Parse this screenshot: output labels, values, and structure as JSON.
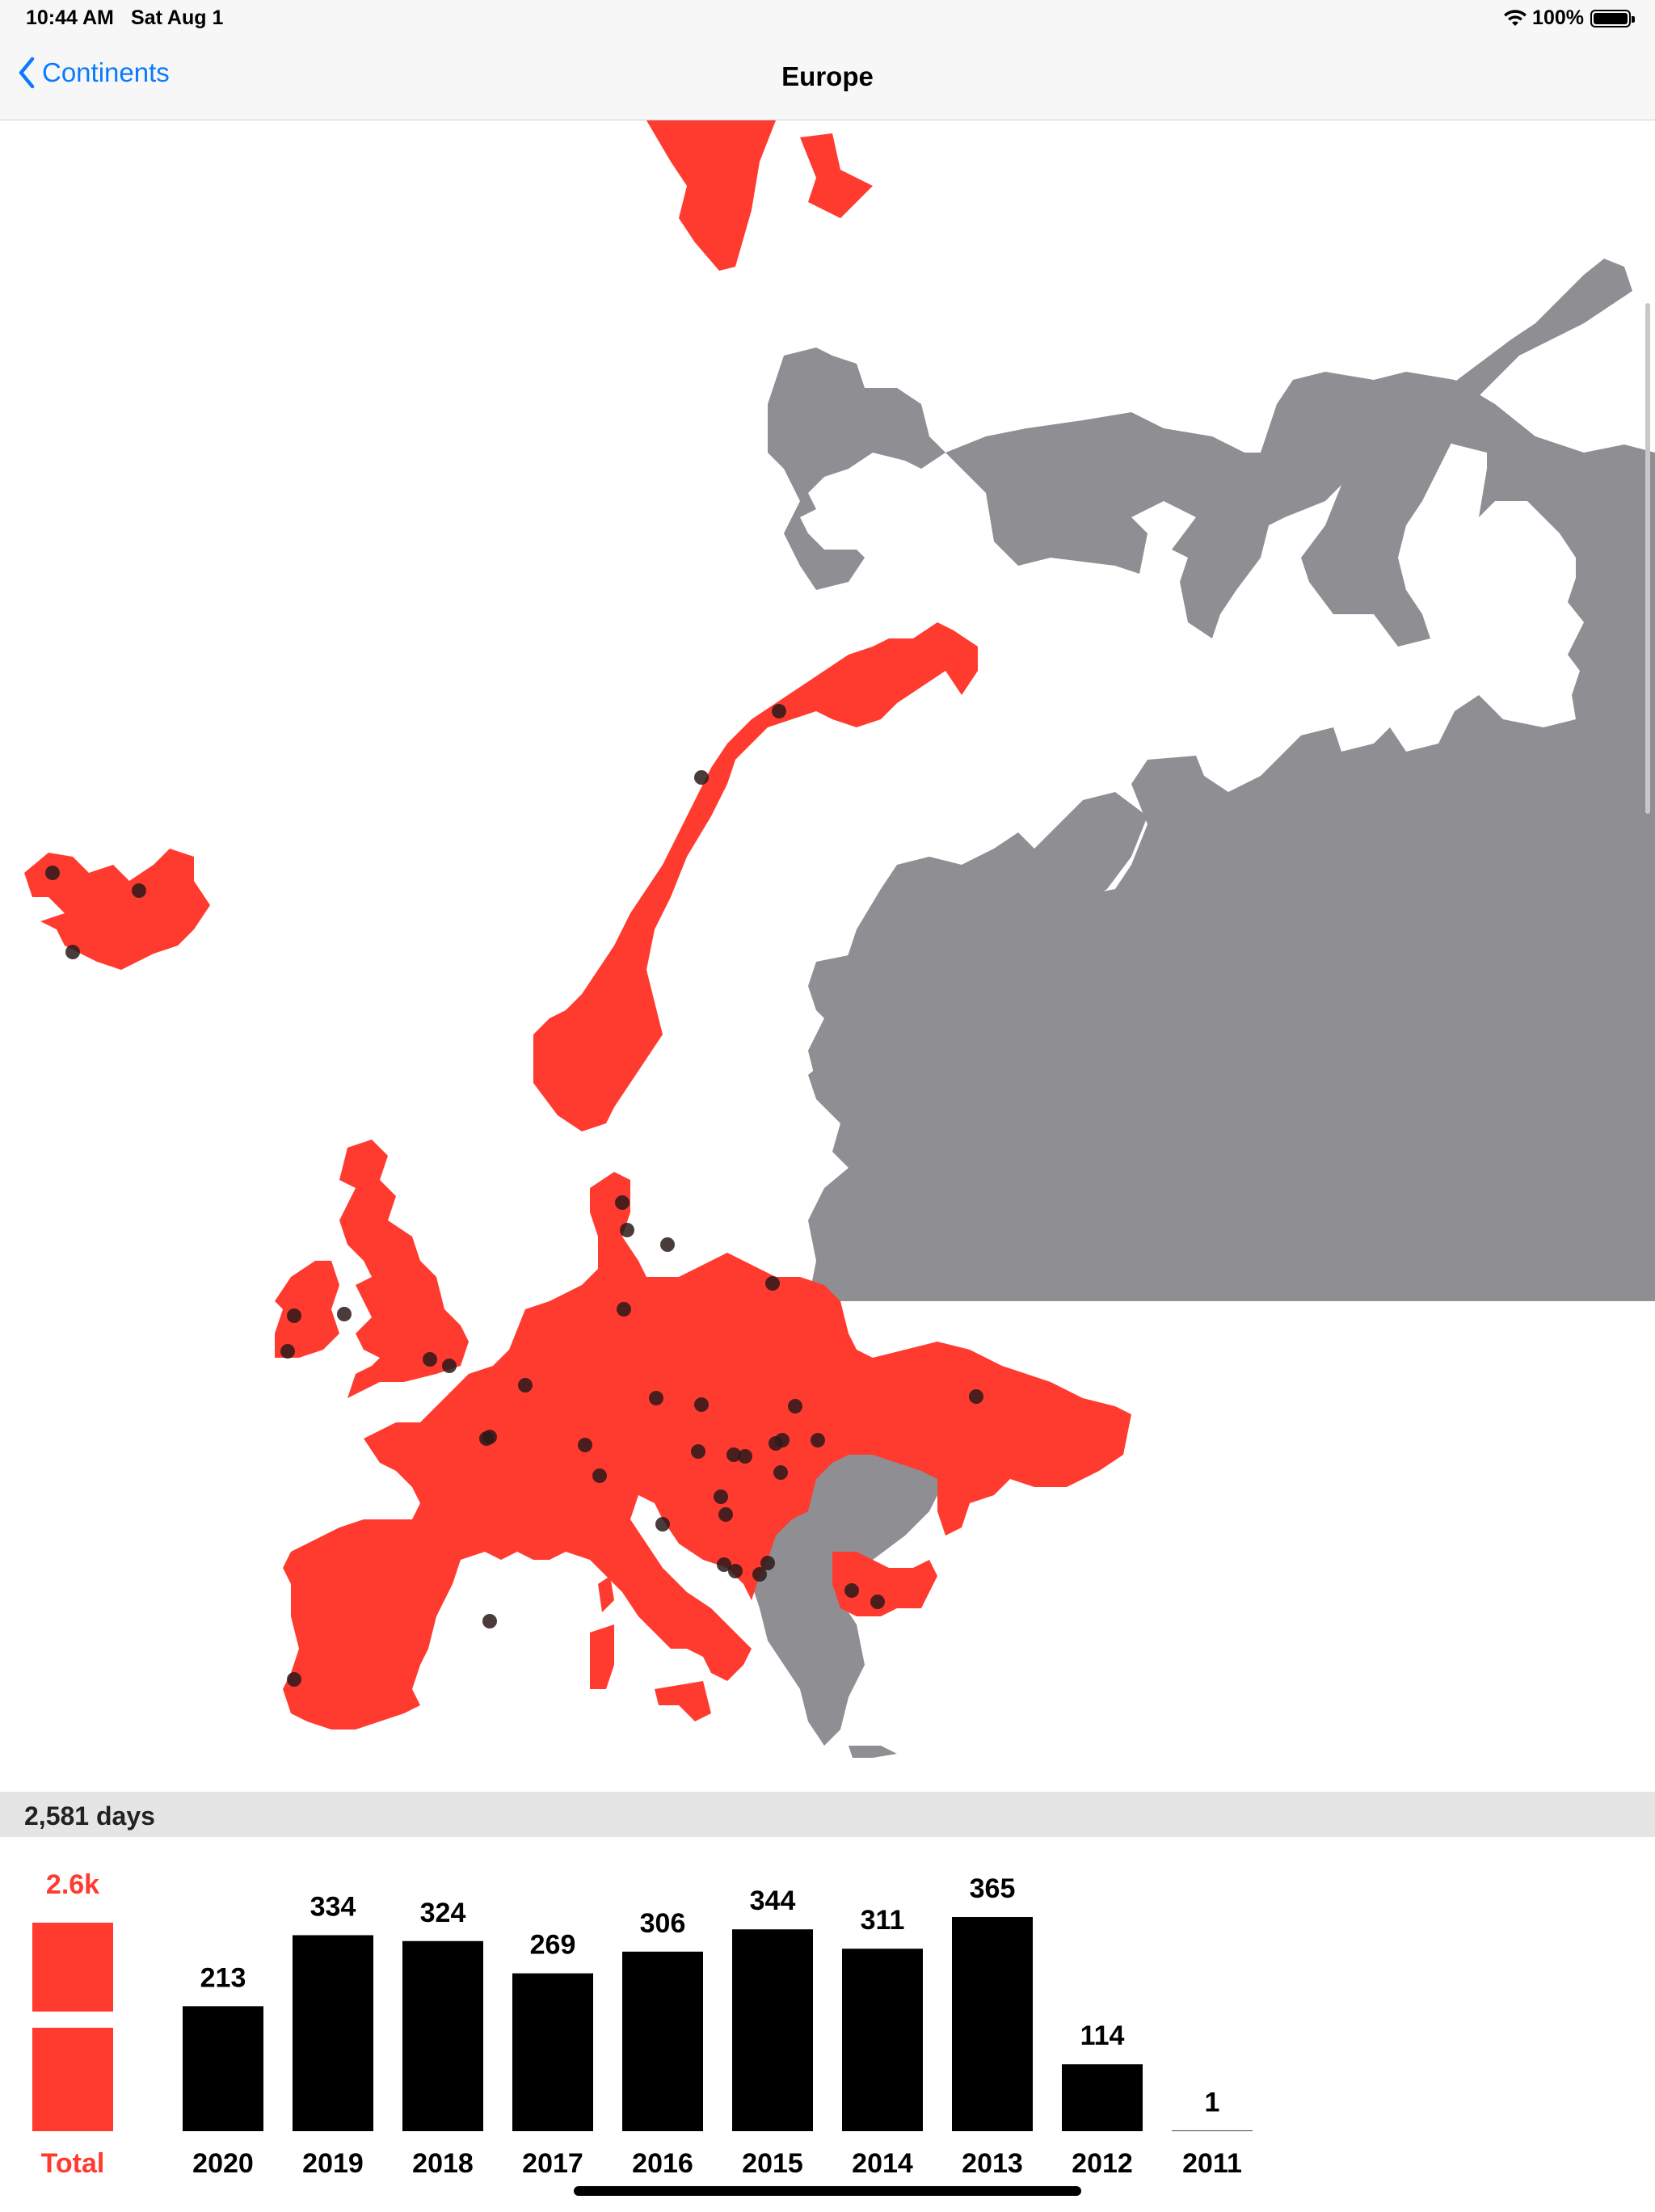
{
  "status_bar": {
    "time": "10:44 AM",
    "date": "Sat Aug 1",
    "battery": "100%"
  },
  "nav": {
    "back_label": "Continents",
    "title": "Europe"
  },
  "summary": {
    "days_label": "2,581 days"
  },
  "colors": {
    "visited": "#ff3b30",
    "unvisited": "#8e8e93",
    "accent": "#0a7aff"
  },
  "chart_data": {
    "type": "bar",
    "total": {
      "label": "Total",
      "value_label": "2.6k",
      "color": "#ff3b30"
    },
    "categories": [
      "2020",
      "2019",
      "2018",
      "2017",
      "2016",
      "2015",
      "2014",
      "2013",
      "2012",
      "2011"
    ],
    "values": [
      213,
      334,
      324,
      269,
      306,
      344,
      311,
      365,
      114,
      1
    ],
    "ylim": [
      0,
      365
    ]
  }
}
